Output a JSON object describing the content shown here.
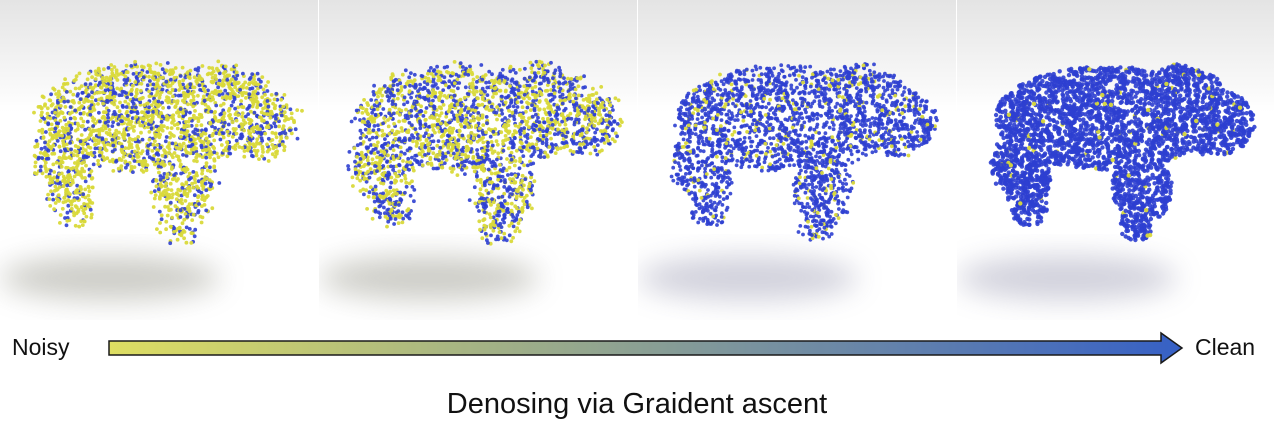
{
  "figure": {
    "labels": {
      "start": "Noisy",
      "end": "Clean"
    },
    "caption": "Denosing via Graident ascent",
    "colors": {
      "noisy_point": "#d9d93a",
      "clean_point": "#2e3fd0",
      "arrow_start": "#dede62",
      "arrow_end": "#3660c6",
      "arrow_stroke": "#1a1a1a"
    },
    "panels": [
      {
        "name": "noisy-stage",
        "clean_fraction": 0.3
      },
      {
        "name": "partially-denoised-stage",
        "clean_fraction": 0.5
      },
      {
        "name": "mostly-denoised-stage",
        "clean_fraction": 0.88
      },
      {
        "name": "clean-stage",
        "clean_fraction": 0.98
      }
    ]
  }
}
